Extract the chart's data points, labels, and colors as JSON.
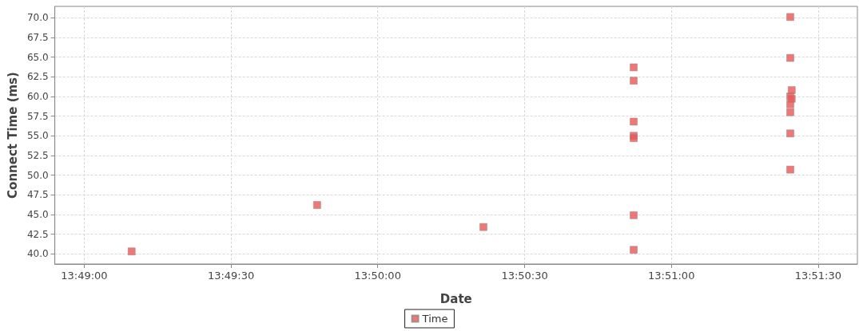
{
  "chart_data": {
    "type": "scatter",
    "xlabel": "Date",
    "ylabel": "Connect Time (ms)",
    "marker": "square",
    "grid": true,
    "legend": "bottom",
    "xlim": [
      13.815,
      13.86056
    ],
    "ylim": [
      38.7,
      71.45
    ],
    "xticks": [
      {
        "value": 13.81667,
        "label": "13:49:00"
      },
      {
        "value": 13.825,
        "label": "13:49:30"
      },
      {
        "value": 13.83333,
        "label": "13:50:00"
      },
      {
        "value": 13.84167,
        "label": "13:50:30"
      },
      {
        "value": 13.85,
        "label": "13:51:00"
      },
      {
        "value": 13.85833,
        "label": "13:51:30"
      }
    ],
    "yticks": [
      {
        "value": 40,
        "label": "40.0"
      },
      {
        "value": 42.5,
        "label": "42.5"
      },
      {
        "value": 45,
        "label": "45.0"
      },
      {
        "value": 47.5,
        "label": "47.5"
      },
      {
        "value": 50,
        "label": "50.0"
      },
      {
        "value": 52.5,
        "label": "52.5"
      },
      {
        "value": 55,
        "label": "55.0"
      },
      {
        "value": 57.5,
        "label": "57.5"
      },
      {
        "value": 60,
        "label": "60.0"
      },
      {
        "value": 62.5,
        "label": "62.5"
      },
      {
        "value": 65,
        "label": "65.0"
      },
      {
        "value": 67.5,
        "label": "67.5"
      },
      {
        "value": 70,
        "label": "70.0"
      }
    ],
    "series": [
      {
        "name": "Time",
        "color": "#ee5555",
        "x": [
          13.81936,
          13.82989,
          13.83933,
          13.84786,
          13.84786,
          13.84786,
          13.84786,
          13.84786,
          13.84786,
          13.84786,
          13.85675,
          13.85675,
          13.85683,
          13.85675,
          13.85683,
          13.85675,
          13.85675,
          13.85675,
          13.85675
        ],
        "values": [
          40.3,
          46.2,
          43.4,
          63.7,
          62.0,
          56.8,
          55.0,
          54.7,
          44.9,
          40.5,
          70.1,
          64.9,
          60.8,
          60.0,
          59.7,
          59.0,
          58.0,
          55.3,
          50.7
        ]
      }
    ]
  }
}
